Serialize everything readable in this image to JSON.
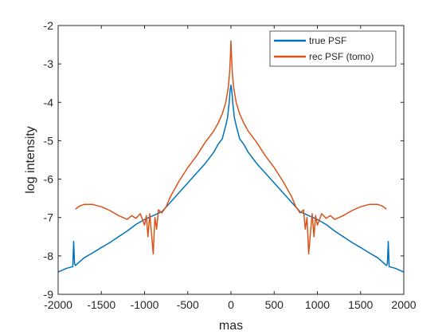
{
  "chart_data": {
    "type": "line",
    "title": "",
    "xlabel": "mas",
    "ylabel": "log intensity",
    "xlim": [
      -2000,
      2000
    ],
    "ylim": [
      -9,
      -2
    ],
    "xticks": [
      -2000,
      -1500,
      -1000,
      -500,
      0,
      500,
      1000,
      1500,
      2000
    ],
    "yticks": [
      -9,
      -8,
      -7,
      -6,
      -5,
      -4,
      -3,
      -2
    ],
    "xtick_labels": [
      "-2000",
      "-1500",
      "-1000",
      "-500",
      "0",
      "500",
      "1000",
      "1500",
      "2000"
    ],
    "ytick_labels": [
      "-9",
      "-8",
      "-7",
      "-6",
      "-5",
      "-4",
      "-3",
      "-2"
    ],
    "grid": false,
    "legend_position": "top-right",
    "series": [
      {
        "name": "true PSF",
        "color": "#0072BD",
        "x": [
          -2000,
          -1900,
          -1830,
          -1820,
          -1810,
          -1800,
          -1750,
          -1700,
          -1600,
          -1500,
          -1400,
          -1300,
          -1200,
          -1100,
          -1000,
          -900,
          -800,
          -700,
          -600,
          -500,
          -400,
          -300,
          -200,
          -150,
          -100,
          -60,
          -40,
          -20,
          -10,
          0,
          10,
          20,
          40,
          60,
          100,
          150,
          200,
          300,
          400,
          500,
          600,
          700,
          800,
          900,
          1000,
          1100,
          1200,
          1300,
          1400,
          1500,
          1600,
          1700,
          1750,
          1800,
          1810,
          1820,
          1830,
          1900,
          2000
        ],
        "y": [
          -8.42,
          -8.32,
          -8.28,
          -7.62,
          -8.2,
          -8.25,
          -8.15,
          -8.05,
          -7.92,
          -7.78,
          -7.65,
          -7.5,
          -7.35,
          -7.18,
          -7.05,
          -6.95,
          -6.85,
          -6.6,
          -6.35,
          -6.1,
          -5.85,
          -5.6,
          -5.3,
          -5.1,
          -4.95,
          -4.6,
          -4.4,
          -4.0,
          -3.7,
          -3.55,
          -3.7,
          -4.0,
          -4.4,
          -4.6,
          -4.95,
          -5.1,
          -5.3,
          -5.6,
          -5.85,
          -6.1,
          -6.35,
          -6.6,
          -6.85,
          -6.95,
          -7.05,
          -7.18,
          -7.35,
          -7.5,
          -7.65,
          -7.78,
          -7.92,
          -8.05,
          -8.15,
          -8.25,
          -8.2,
          -7.62,
          -8.28,
          -8.32,
          -8.42
        ]
      },
      {
        "name": "rec PSF (tomo)",
        "color": "#D95319",
        "x": [
          -1800,
          -1750,
          -1700,
          -1600,
          -1500,
          -1400,
          -1300,
          -1250,
          -1200,
          -1150,
          -1100,
          -1050,
          -1000,
          -980,
          -960,
          -940,
          -920,
          -900,
          -880,
          -860,
          -840,
          -800,
          -750,
          -700,
          -600,
          -500,
          -400,
          -300,
          -200,
          -150,
          -100,
          -60,
          -30,
          -15,
          -5,
          0,
          5,
          15,
          30,
          60,
          100,
          150,
          200,
          300,
          400,
          500,
          600,
          700,
          750,
          800,
          840,
          860,
          880,
          900,
          920,
          940,
          960,
          980,
          1000,
          1050,
          1100,
          1150,
          1200,
          1250,
          1300,
          1400,
          1500,
          1600,
          1700,
          1750,
          1800
        ],
        "y": [
          -6.78,
          -6.7,
          -6.66,
          -6.66,
          -6.72,
          -6.82,
          -6.95,
          -7.0,
          -7.05,
          -6.95,
          -7.02,
          -6.9,
          -7.2,
          -6.95,
          -7.5,
          -6.9,
          -7.4,
          -7.95,
          -7.0,
          -7.3,
          -6.8,
          -6.88,
          -6.72,
          -6.45,
          -6.05,
          -5.7,
          -5.4,
          -5.05,
          -4.75,
          -4.55,
          -4.3,
          -4.0,
          -3.6,
          -3.2,
          -2.7,
          -2.4,
          -2.7,
          -3.2,
          -3.6,
          -4.0,
          -4.3,
          -4.55,
          -4.75,
          -5.05,
          -5.4,
          -5.7,
          -6.05,
          -6.45,
          -6.72,
          -6.88,
          -6.8,
          -7.3,
          -7.0,
          -7.95,
          -7.4,
          -6.9,
          -7.5,
          -6.95,
          -7.2,
          -6.9,
          -7.02,
          -6.95,
          -7.05,
          -7.0,
          -6.95,
          -6.82,
          -6.72,
          -6.66,
          -6.66,
          -6.7,
          -6.78
        ]
      }
    ]
  }
}
